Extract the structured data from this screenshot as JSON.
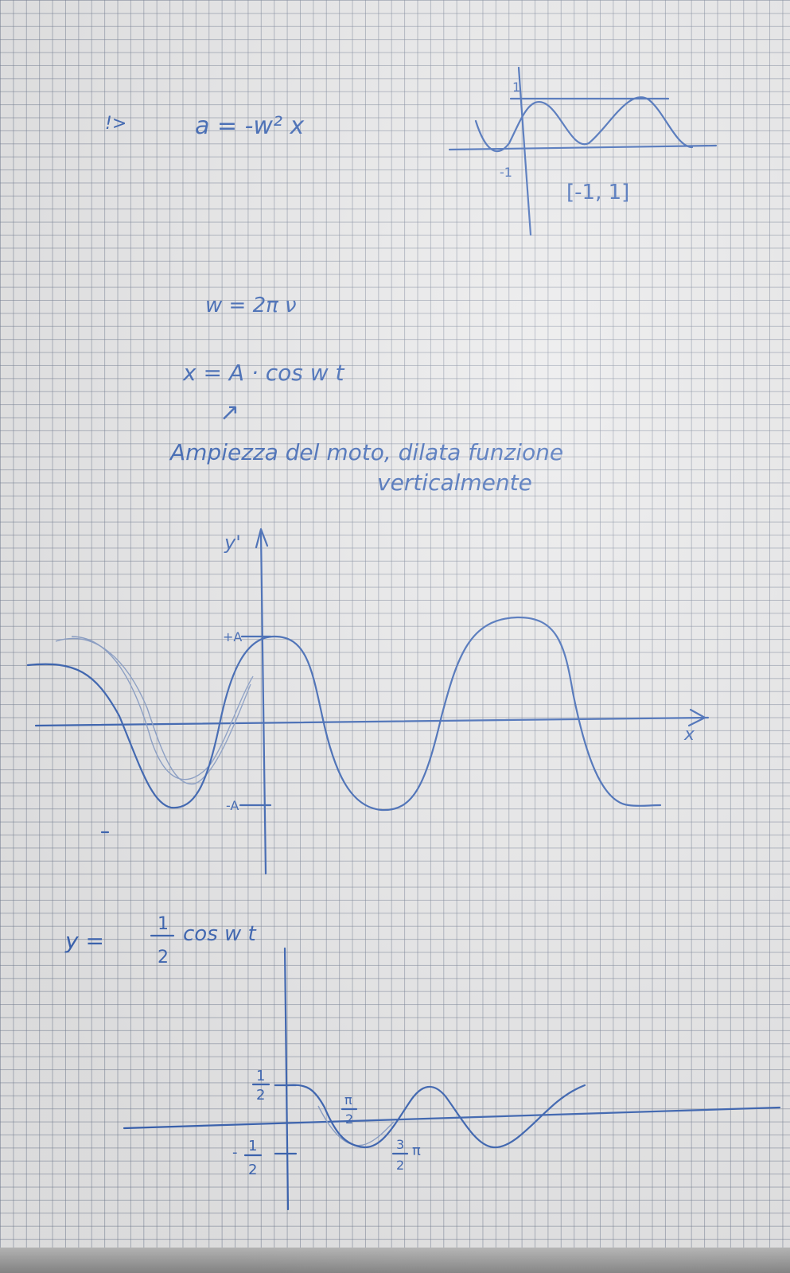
{
  "notes": {
    "arrow_symbol": "!>",
    "accel_eq": "a = -w² x",
    "omega_eq": "w = 2π ν",
    "position_eq": "x = A · cos w t",
    "arrow_up": "↗",
    "amplitude_line1": "Ampiezza del moto, dilata funzione",
    "amplitude_line2": "verticalmente",
    "half_eq_left": "y =",
    "half_eq_num": "1",
    "half_eq_den": "2",
    "half_eq_right": "cos w t"
  },
  "small_graph": {
    "y_top_label": "1",
    "y_bottom_label": "-1",
    "range_label": "[-1, 1]"
  },
  "main_graph": {
    "y_label": "y'",
    "x_label": "x",
    "plus_a": "+A",
    "minus_a": "-A"
  },
  "half_graph": {
    "half_num": "1",
    "half_den": "2",
    "neg_sign": "-",
    "neg_num": "1",
    "neg_den": "2",
    "pi_num": "π",
    "pi_den": "2",
    "three_num": "3",
    "three_den": "2",
    "three_pi": "π"
  },
  "colors": {
    "ink": "#3a64b4",
    "paper": "#e9e9ea"
  }
}
